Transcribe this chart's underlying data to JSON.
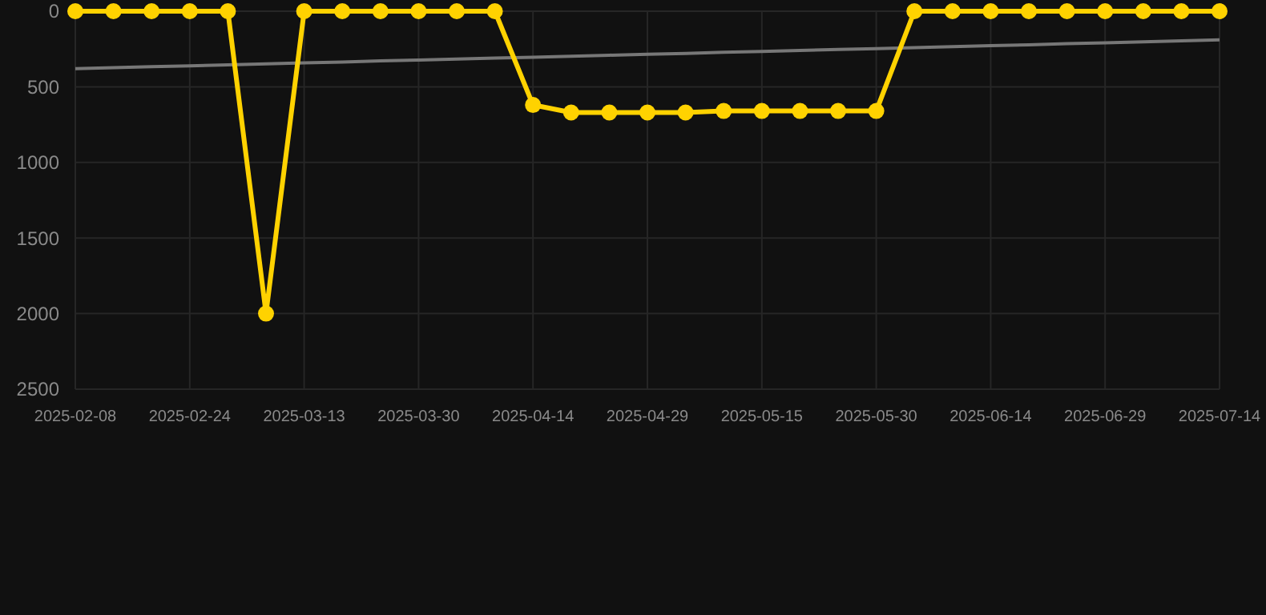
{
  "chart_data": {
    "type": "line",
    "categories": [
      "2025-02-08",
      null,
      null,
      "2025-02-24",
      null,
      null,
      "2025-03-13",
      null,
      null,
      "2025-03-30",
      null,
      null,
      "2025-04-14",
      null,
      null,
      "2025-04-29",
      null,
      null,
      "2025-05-15",
      null,
      null,
      "2025-05-30",
      null,
      null,
      "2025-06-14",
      null,
      null,
      "2025-06-29",
      null,
      null,
      "2025-07-14"
    ],
    "series": [
      {
        "color": "#ffd200",
        "marker": "circle",
        "values": [
          0,
          0,
          0,
          0,
          0,
          2000,
          0,
          0,
          0,
          0,
          0,
          0,
          620,
          670,
          670,
          670,
          670,
          660,
          660,
          660,
          660,
          660,
          0,
          0,
          0,
          0,
          0,
          0,
          0,
          0,
          0
        ]
      },
      {
        "type": "line",
        "color": "#777777",
        "marker": "none",
        "values": [
          380,
          374,
          367,
          361,
          355,
          348,
          342,
          336,
          329,
          323,
          317,
          310,
          304,
          298,
          291,
          285,
          279,
          272,
          266,
          260,
          253,
          247,
          241,
          234,
          228,
          222,
          215,
          209,
          203,
          196,
          190
        ]
      }
    ],
    "ylim": [
      2500,
      0
    ],
    "yticks": [
      0,
      500,
      1000,
      1500,
      2000,
      2500
    ],
    "grid": true
  }
}
